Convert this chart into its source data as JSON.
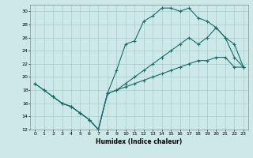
{
  "xlabel": "Humidex (Indice chaleur)",
  "bg_color": "#cce8e8",
  "line_color": "#1a6b6b",
  "grid_color": "#aacccc",
  "xlim": [
    -0.5,
    23.5
  ],
  "ylim": [
    12,
    31
  ],
  "xticks": [
    0,
    1,
    2,
    3,
    4,
    5,
    6,
    7,
    8,
    9,
    10,
    11,
    12,
    13,
    14,
    15,
    16,
    17,
    18,
    19,
    20,
    21,
    22,
    23
  ],
  "yticks": [
    12,
    14,
    16,
    18,
    20,
    22,
    24,
    26,
    28,
    30
  ],
  "curve1_x": [
    0,
    1,
    2,
    3,
    4,
    5,
    6,
    7,
    8,
    9,
    10,
    11,
    12,
    13,
    14,
    15,
    16,
    17,
    18,
    19,
    20,
    21,
    22,
    23
  ],
  "curve1_y": [
    19,
    18,
    17,
    16,
    15.5,
    14.5,
    13.5,
    12,
    17.5,
    21,
    25,
    25.5,
    28.5,
    29.3,
    30.5,
    30.5,
    30,
    30.5,
    29,
    28.5,
    27.5,
    26,
    23,
    21.5
  ],
  "curve2_x": [
    0,
    1,
    2,
    3,
    4,
    5,
    6,
    7,
    8,
    9,
    10,
    11,
    12,
    13,
    14,
    15,
    16,
    17,
    18,
    19,
    20,
    21,
    22,
    23
  ],
  "curve2_y": [
    19,
    18,
    17,
    16,
    15.5,
    14.5,
    13.5,
    12,
    17.5,
    18,
    18.5,
    19,
    19.5,
    20,
    20.5,
    21,
    21.5,
    22,
    22.5,
    22.5,
    23,
    23,
    21.5,
    21.5
  ],
  "curve3_x": [
    2,
    3,
    4,
    5,
    6,
    7,
    8,
    9,
    10,
    11,
    12,
    13,
    14,
    15,
    16,
    17,
    18,
    19,
    20,
    21,
    22,
    23
  ],
  "curve3_y": [
    17,
    16,
    15.5,
    14.5,
    13.5,
    12,
    17.5,
    18,
    19,
    20,
    21,
    22,
    23,
    24,
    25,
    26,
    25,
    26,
    27.5,
    26,
    25,
    21.5
  ]
}
